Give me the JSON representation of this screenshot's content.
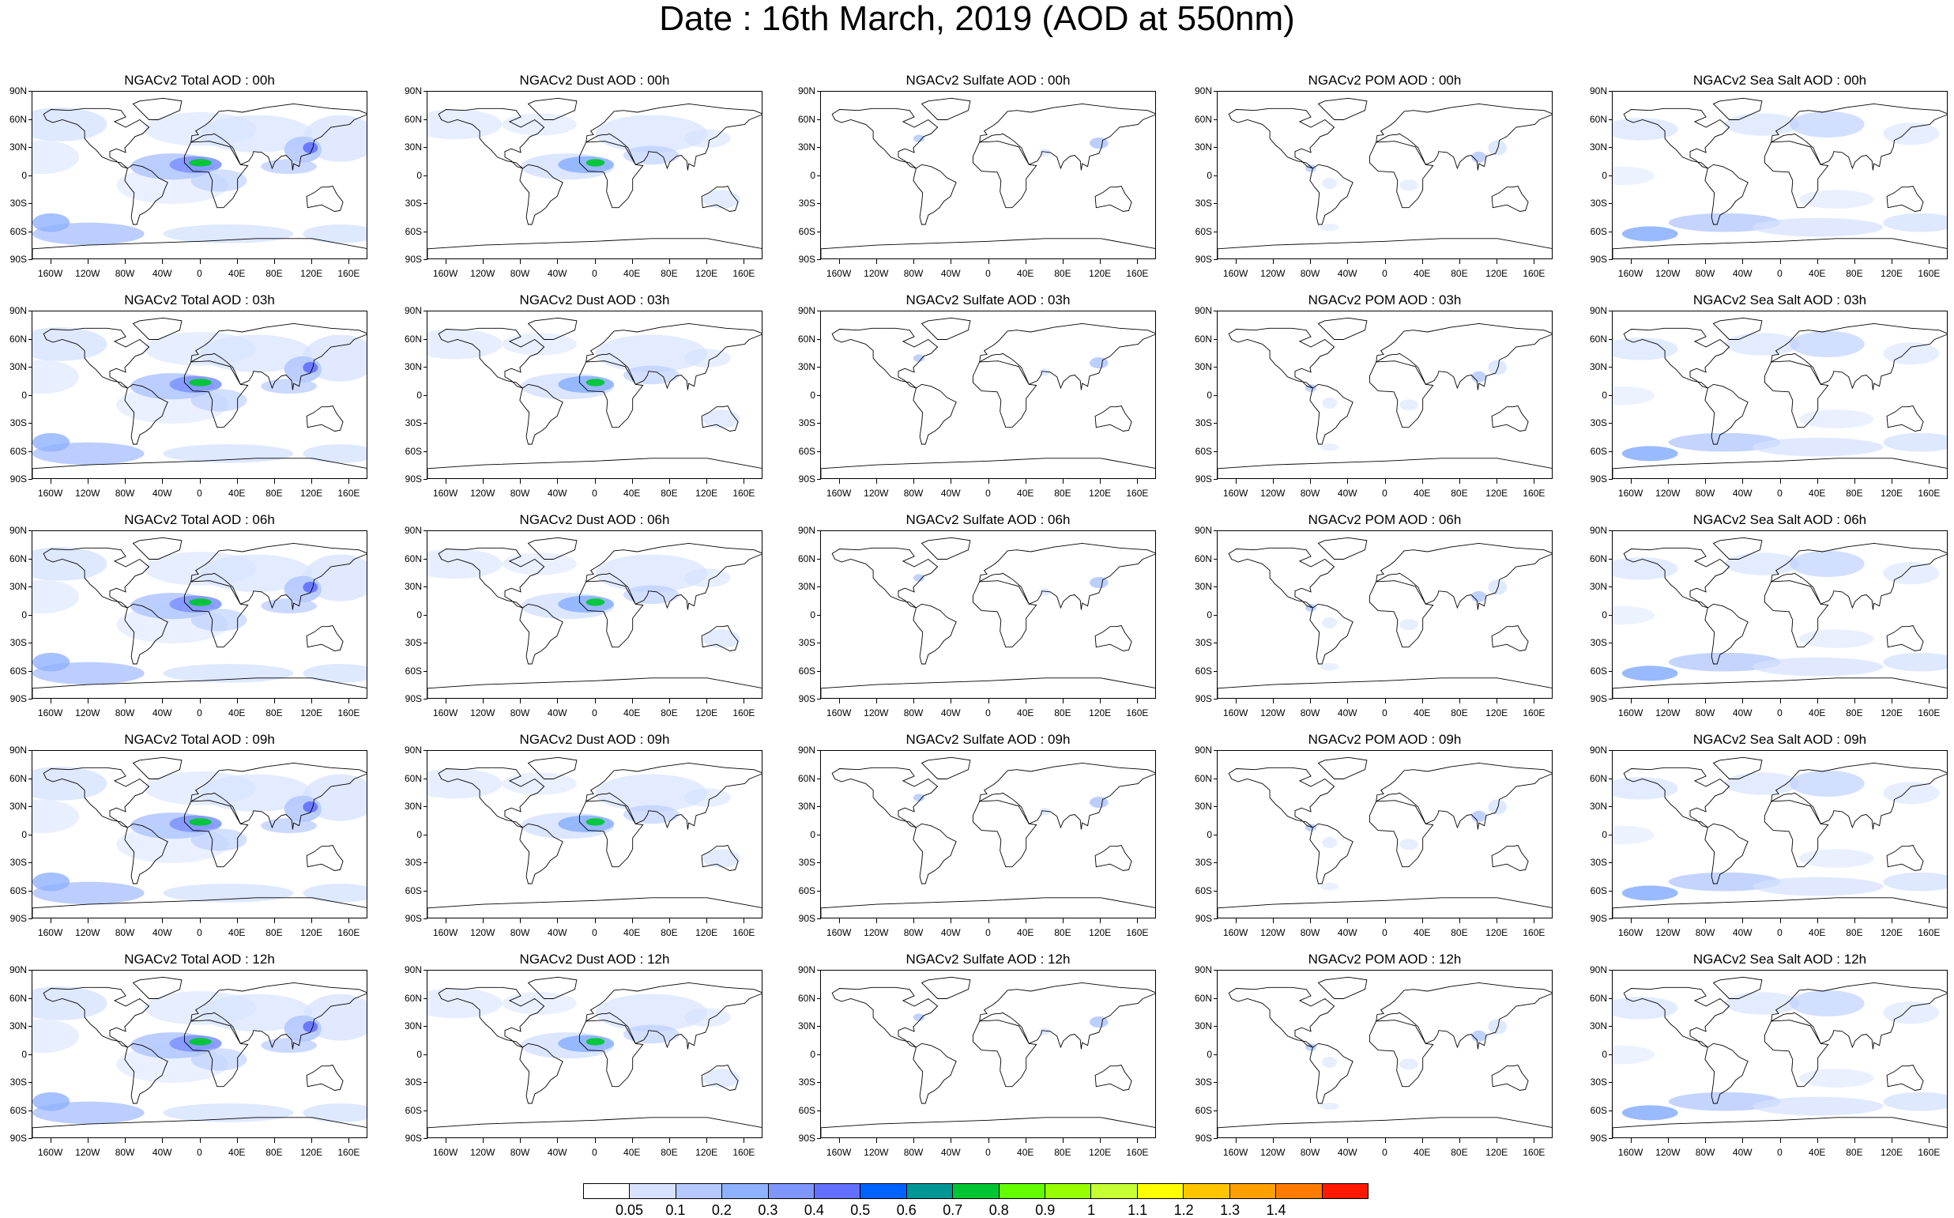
{
  "title": "Date : 16th March, 2019 (AOD at 550nm)",
  "lat_ticks": [
    "90N",
    "60N",
    "30N",
    "0",
    "30S",
    "60S",
    "90S"
  ],
  "lon_ticks": [
    "160W",
    "120W",
    "80W",
    "40W",
    "0",
    "40E",
    "80E",
    "120E",
    "160E"
  ],
  "lon_tick_values": [
    -160,
    -120,
    -80,
    -40,
    0,
    40,
    80,
    120,
    160
  ],
  "lat_tick_values": [
    90,
    60,
    30,
    0,
    -30,
    -60,
    -90
  ],
  "lon_range": [
    -180,
    180
  ],
  "lat_range": [
    -90,
    90
  ],
  "panels": [
    {
      "title": "NGACv2 Total AOD : 00h",
      "species": "total"
    },
    {
      "title": "NGACv2 Dust AOD : 00h",
      "species": "dust"
    },
    {
      "title": "NGACv2 Sulfate AOD : 00h",
      "species": "sulfate"
    },
    {
      "title": "NGACv2 POM AOD : 00h",
      "species": "pom"
    },
    {
      "title": "NGACv2 Sea Salt AOD : 00h",
      "species": "seasalt"
    },
    {
      "title": "NGACv2 Total AOD : 03h",
      "species": "total"
    },
    {
      "title": "NGACv2 Dust AOD : 03h",
      "species": "dust"
    },
    {
      "title": "NGACv2 Sulfate AOD : 03h",
      "species": "sulfate"
    },
    {
      "title": "NGACv2 POM AOD : 03h",
      "species": "pom"
    },
    {
      "title": "NGACv2 Sea Salt AOD : 03h",
      "species": "seasalt"
    },
    {
      "title": "NGACv2 Total AOD : 06h",
      "species": "total"
    },
    {
      "title": "NGACv2 Dust AOD : 06h",
      "species": "dust"
    },
    {
      "title": "NGACv2 Sulfate AOD : 06h",
      "species": "sulfate"
    },
    {
      "title": "NGACv2 POM AOD : 06h",
      "species": "pom"
    },
    {
      "title": "NGACv2 Sea Salt AOD : 06h",
      "species": "seasalt"
    },
    {
      "title": "NGACv2 Total AOD : 09h",
      "species": "total"
    },
    {
      "title": "NGACv2 Dust AOD : 09h",
      "species": "dust"
    },
    {
      "title": "NGACv2 Sulfate AOD : 09h",
      "species": "sulfate"
    },
    {
      "title": "NGACv2 POM AOD : 09h",
      "species": "pom"
    },
    {
      "title": "NGACv2 Sea Salt  AOD : 09h",
      "species": "seasalt"
    },
    {
      "title": "NGACv2 Total AOD  : 12h",
      "species": "total"
    },
    {
      "title": "NGACv2 Dust AOD : 12h",
      "species": "dust"
    },
    {
      "title": "NGACv2 Sulfate AOD : 12h",
      "species": "sulfate"
    },
    {
      "title": "NGACv2 POM  AOD : 12h",
      "species": "pom"
    },
    {
      "title": "NGACv2 Sea Salt  AOD : 12h",
      "species": "seasalt"
    }
  ],
  "colorbar": {
    "labels": [
      "0.05",
      "0.1",
      "0.2",
      "0.3",
      "0.4",
      "0.5",
      "0.6",
      "0.7",
      "0.8",
      "0.9",
      "1",
      "1.1",
      "1.2",
      "1.3",
      "1.4"
    ],
    "colors": [
      "#ffffff",
      "#d6e2ff",
      "#b5c9ff",
      "#8eb2ff",
      "#7f96ff",
      "#6370ff",
      "#0063ff",
      "#009696",
      "#00c633",
      "#63ff00",
      "#96ff00",
      "#c6ff33",
      "#ffff00",
      "#ffc600",
      "#ffa000",
      "#ff7c00",
      "#ff1900"
    ]
  }
}
